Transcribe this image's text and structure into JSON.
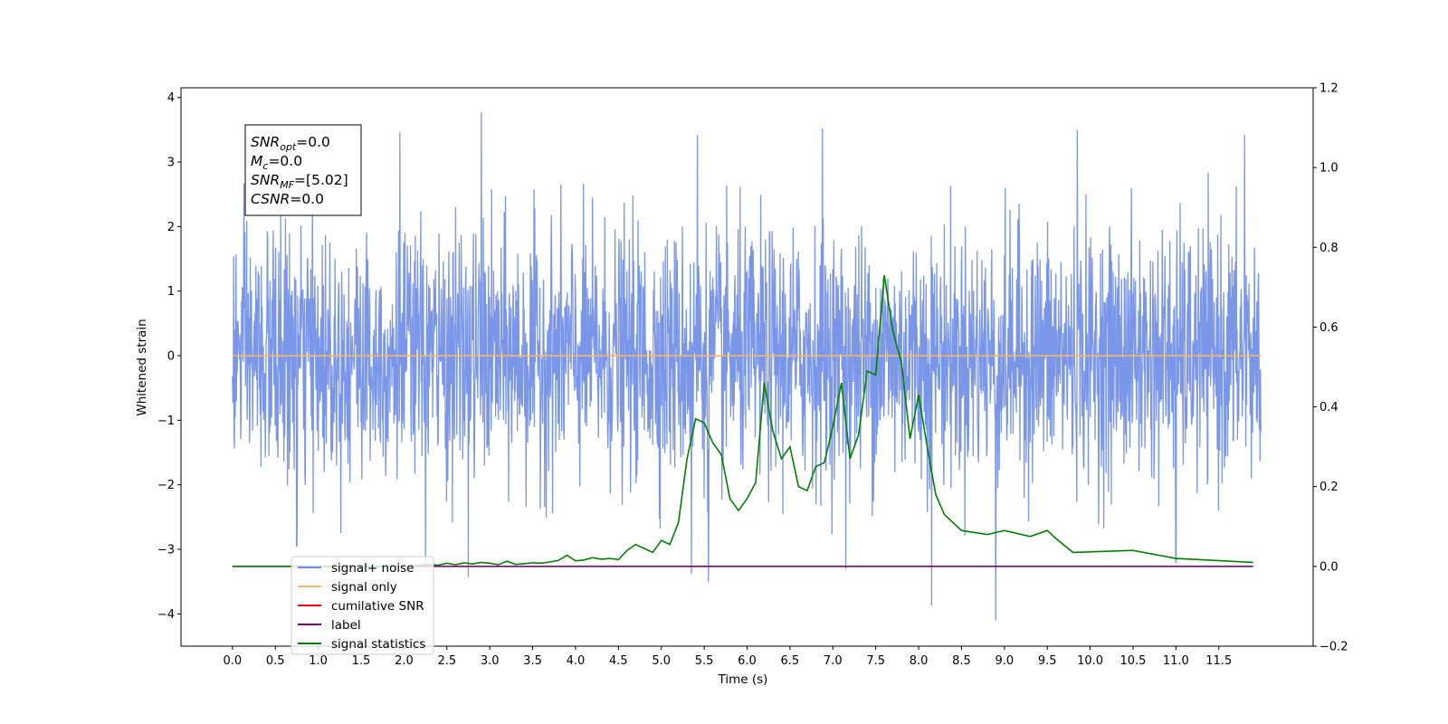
{
  "chart_data": {
    "type": "line",
    "xlabel": "Time (s)",
    "ylabel": "Whitened strain",
    "xlim": [
      -0.6,
      12.6
    ],
    "ylim": [
      -4.5,
      4.15
    ],
    "y2lim": [
      -0.2,
      1.2
    ],
    "x_ticks": [
      0.0,
      0.5,
      1.0,
      1.5,
      2.0,
      2.5,
      3.0,
      3.5,
      4.0,
      4.5,
      5.0,
      5.5,
      6.0,
      6.5,
      7.0,
      7.5,
      8.0,
      8.5,
      9.0,
      9.5,
      10.0,
      10.5,
      11.0,
      11.5
    ],
    "x_tick_labels": [
      "0.0",
      "0.5",
      "1.0",
      "1.5",
      "2.0",
      "2.5",
      "3.0",
      "3.5",
      "4.0",
      "4.5",
      "5.0",
      "5.5",
      "6.0",
      "6.5",
      "7.0",
      "7.5",
      "8.0",
      "8.5",
      "9.0",
      "9.5",
      "10.0",
      "10.5",
      "11.0",
      "11.5"
    ],
    "y_ticks": [
      -4,
      -3,
      -2,
      -1,
      0,
      1,
      2,
      3,
      4
    ],
    "y_tick_labels": [
      "−4",
      "−3",
      "−2",
      "−1",
      "0",
      "1",
      "2",
      "3",
      "4"
    ],
    "y2_ticks": [
      -0.2,
      0.0,
      0.2,
      0.4,
      0.6,
      0.8,
      1.0,
      1.2
    ],
    "y2_tick_labels": [
      "−0.2",
      "0.0",
      "0.2",
      "0.4",
      "0.6",
      "0.8",
      "1.0",
      "1.2"
    ],
    "grid": false,
    "legend_position": "lower-left",
    "series": [
      {
        "name": "signal+ noise",
        "color": "#6f8de6",
        "axis": "left",
        "kind": "noise",
        "x_range": [
          0.0,
          11.99
        ],
        "envelope_typical": [
          -2.0,
          2.0
        ],
        "peaks": [
          {
            "x": 2.9,
            "y": 3.77
          },
          {
            "x": 1.95,
            "y": 3.46
          },
          {
            "x": 5.42,
            "y": 3.42
          },
          {
            "x": 6.88,
            "y": 3.52
          },
          {
            "x": 9.85,
            "y": 3.5
          },
          {
            "x": 11.8,
            "y": 3.42
          },
          {
            "x": 8.9,
            "y": -4.1
          },
          {
            "x": 8.15,
            "y": -3.87
          },
          {
            "x": 5.55,
            "y": -3.5
          },
          {
            "x": 2.75,
            "y": -3.43
          },
          {
            "x": 5.35,
            "y": -3.38
          },
          {
            "x": 2.25,
            "y": -3.3
          },
          {
            "x": 7.15,
            "y": -3.3
          },
          {
            "x": 11.0,
            "y": -3.2
          },
          {
            "x": 0.75,
            "y": -2.95
          }
        ]
      },
      {
        "name": "signal only",
        "color": "#f5b56a",
        "axis": "left",
        "x": [
          0.0,
          11.99
        ],
        "y": [
          0.0,
          0.0
        ]
      },
      {
        "name": "cumilative SNR",
        "color": "#ff0000",
        "axis": "right",
        "x": [],
        "y": []
      },
      {
        "name": "label",
        "color": "#800080",
        "axis": "right",
        "x": [
          0.0,
          11.9
        ],
        "y": [
          0.0,
          0.0
        ]
      },
      {
        "name": "signal statistics",
        "color": "#008000",
        "axis": "right",
        "x": [
          0.0,
          1.0,
          2.0,
          2.3,
          2.4,
          2.5,
          2.6,
          2.7,
          2.8,
          2.9,
          3.0,
          3.1,
          3.2,
          3.3,
          3.4,
          3.5,
          3.6,
          3.7,
          3.8,
          3.9,
          4.0,
          4.1,
          4.2,
          4.3,
          4.4,
          4.5,
          4.6,
          4.7,
          4.8,
          4.9,
          5.0,
          5.1,
          5.2,
          5.3,
          5.4,
          5.5,
          5.6,
          5.7,
          5.8,
          5.9,
          6.0,
          6.1,
          6.2,
          6.3,
          6.4,
          6.5,
          6.6,
          6.7,
          6.8,
          6.9,
          7.0,
          7.1,
          7.2,
          7.3,
          7.4,
          7.5,
          7.6,
          7.7,
          7.8,
          7.9,
          8.0,
          8.1,
          8.2,
          8.3,
          8.5,
          8.8,
          9.0,
          9.3,
          9.5,
          9.6,
          9.8,
          10.5,
          11.0,
          11.9
        ],
        "y": [
          0.0,
          0.0,
          0.0,
          0.005,
          0.003,
          0.008,
          0.004,
          0.009,
          0.006,
          0.01,
          0.008,
          0.004,
          0.013,
          0.005,
          0.007,
          0.009,
          0.008,
          0.011,
          0.015,
          0.028,
          0.014,
          0.016,
          0.022,
          0.018,
          0.02,
          0.017,
          0.04,
          0.055,
          0.045,
          0.035,
          0.065,
          0.055,
          0.11,
          0.27,
          0.37,
          0.36,
          0.31,
          0.28,
          0.17,
          0.14,
          0.17,
          0.21,
          0.46,
          0.34,
          0.27,
          0.3,
          0.2,
          0.19,
          0.25,
          0.26,
          0.35,
          0.46,
          0.27,
          0.33,
          0.49,
          0.48,
          0.73,
          0.59,
          0.51,
          0.32,
          0.43,
          0.3,
          0.18,
          0.13,
          0.09,
          0.08,
          0.09,
          0.075,
          0.09,
          0.07,
          0.035,
          0.04,
          0.02,
          0.01
        ]
      }
    ],
    "annotations": [
      {
        "label": "SNR",
        "sub": "opt",
        "value": "=0.0"
      },
      {
        "label": "M",
        "sub": "c",
        "value": "=0.0"
      },
      {
        "label": "SNR",
        "sub": "MF",
        "value": "=[5.02]"
      },
      {
        "label": "CSNR",
        "sub": "",
        "value": "=0.0"
      }
    ],
    "legend_overlapped_text": "signal only"
  }
}
